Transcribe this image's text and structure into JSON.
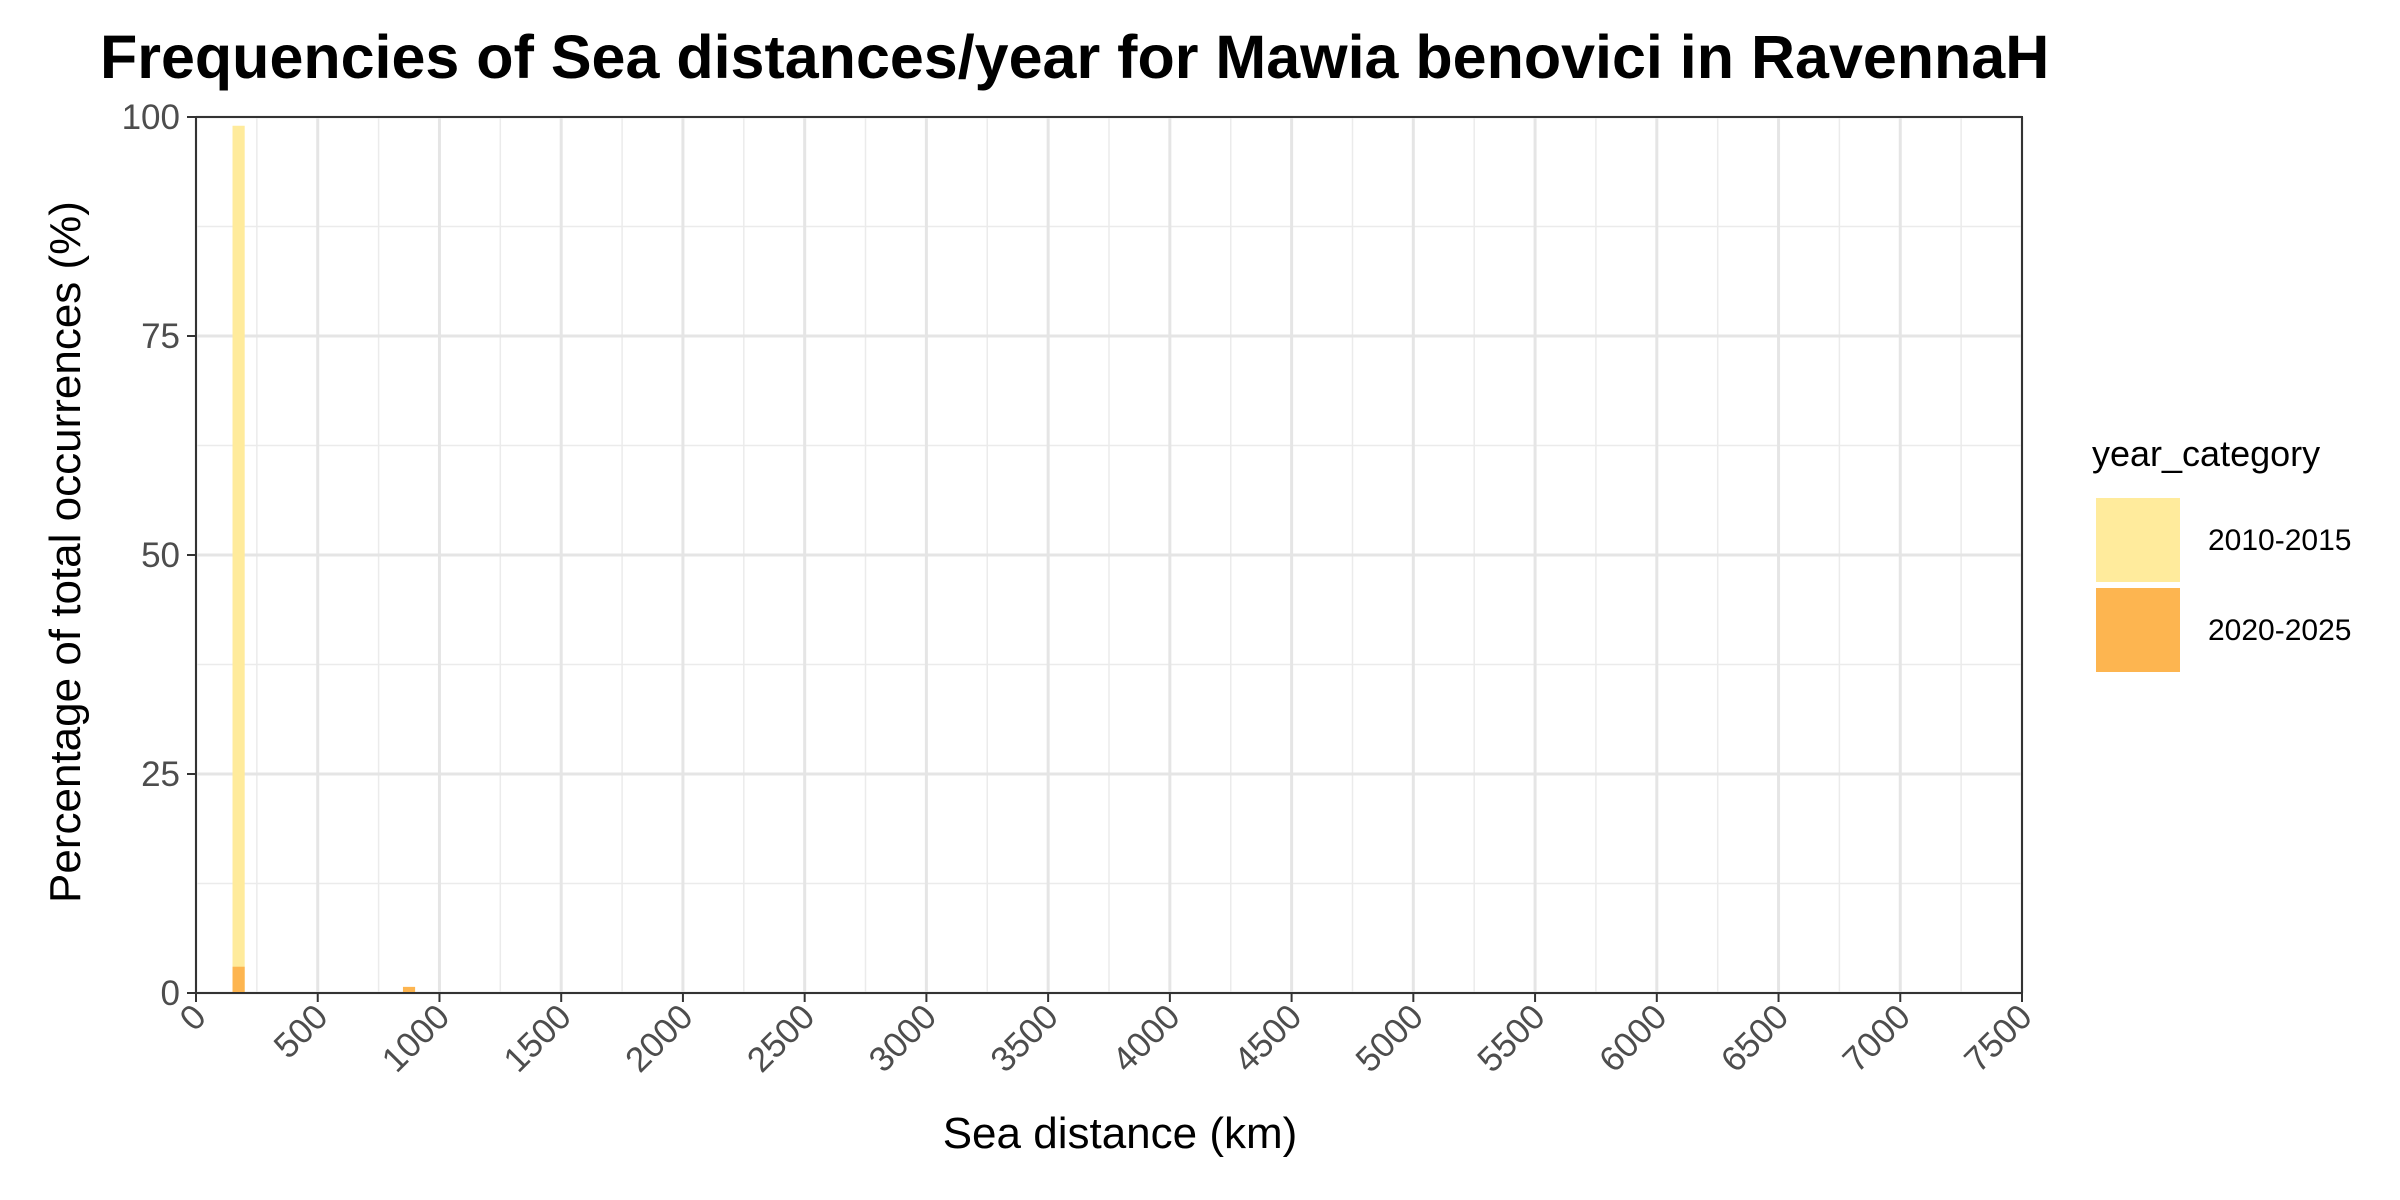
{
  "chart_data": {
    "type": "bar",
    "title": "Frequencies of Sea distances/year for Mawia benovici in RavennaH",
    "xlabel": "Sea distance (km)",
    "ylabel": "Percentage of total occurrences (%)",
    "xlim": [
      0,
      7500
    ],
    "ylim": [
      0,
      100
    ],
    "x_ticks": [
      0,
      500,
      1000,
      1500,
      2000,
      2500,
      3000,
      3500,
      4000,
      4500,
      5000,
      5500,
      6000,
      6500,
      7000,
      7500
    ],
    "y_ticks": [
      0,
      25,
      50,
      75,
      100
    ],
    "bin_width": 50,
    "grid": true,
    "legend": {
      "title": "year_category",
      "position": "right"
    },
    "series": [
      {
        "name": "2010-2015",
        "color": "#FFEB9C",
        "bars": [
          {
            "x_start": 150,
            "x_end": 200,
            "value": 99
          }
        ]
      },
      {
        "name": "2020-2025",
        "color": "#FDB550",
        "bars": [
          {
            "x_start": 150,
            "x_end": 200,
            "value": 3
          },
          {
            "x_start": 850,
            "x_end": 900,
            "value": 0.7
          }
        ]
      }
    ]
  }
}
